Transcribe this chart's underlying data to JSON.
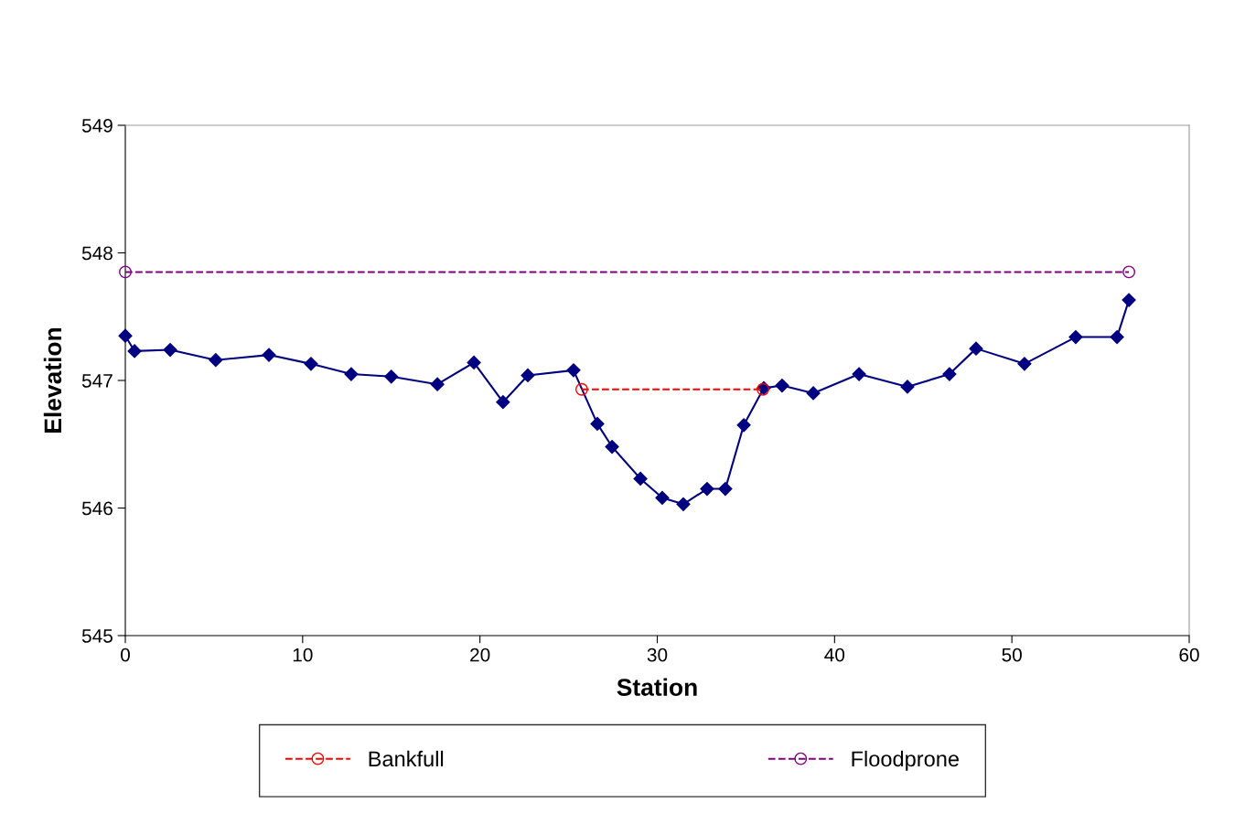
{
  "chart_data": {
    "type": "line",
    "xlabel": "Station",
    "ylabel": "Elevation",
    "xlim": [
      0,
      60
    ],
    "xticks": [
      0,
      10,
      20,
      30,
      40,
      50,
      60
    ],
    "ylim": [
      545,
      549
    ],
    "yticks": [
      545,
      546,
      547,
      548,
      549
    ],
    "grid": false,
    "legend": "bottom",
    "series": [
      {
        "color": "#000080",
        "marker": "diamond",
        "line_style": "solid",
        "x": [
          0,
          0.52,
          2.53,
          5.1,
          8.1,
          10.47,
          12.74,
          15.0,
          17.6,
          19.66,
          21.3,
          22.7,
          25.28,
          26.62,
          27.45,
          29.05,
          30.28,
          31.47,
          32.81,
          33.84,
          34.88,
          36.01,
          37.04,
          38.8,
          41.38,
          44.11,
          46.48,
          47.98,
          50.71,
          53.6,
          55.93,
          56.6
        ],
        "values": [
          547.35,
          547.23,
          547.24,
          547.16,
          547.2,
          547.13,
          547.05,
          547.03,
          546.97,
          547.14,
          546.83,
          547.04,
          547.08,
          546.66,
          546.48,
          546.23,
          546.08,
          546.03,
          546.15,
          546.15,
          546.65,
          546.94,
          546.96,
          546.9,
          547.05,
          546.95,
          547.05,
          547.25,
          547.13,
          547.34,
          547.34,
          547.63
        ]
      },
      {
        "name": "Bankfull",
        "color": "#ff0000",
        "marker": "circle",
        "line_style": "dashed",
        "x": [
          25.74,
          35.96
        ],
        "values": [
          546.93,
          546.93
        ]
      },
      {
        "name": "Floodprone",
        "color": "#800080",
        "marker": "circle",
        "line_style": "dashed",
        "x": [
          0,
          56.6
        ],
        "values": [
          547.85,
          547.85
        ]
      }
    ]
  }
}
